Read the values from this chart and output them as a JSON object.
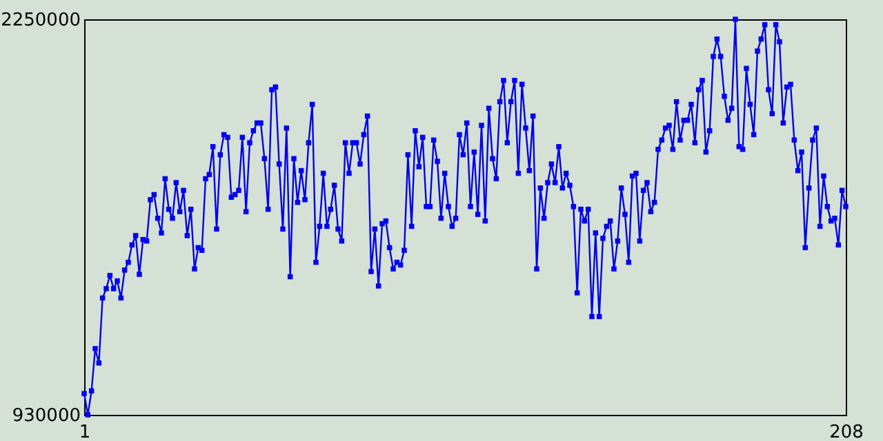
{
  "chart_data": {
    "type": "line",
    "x": [
      1,
      2,
      3,
      4,
      5,
      6,
      7,
      8,
      9,
      10,
      11,
      12,
      13,
      14,
      15,
      16,
      17,
      18,
      19,
      20,
      21,
      22,
      23,
      24,
      25,
      26,
      27,
      28,
      29,
      30,
      31,
      32,
      33,
      34,
      35,
      36,
      37,
      38,
      39,
      40,
      41,
      42,
      43,
      44,
      45,
      46,
      47,
      48,
      49,
      50,
      51,
      52,
      53,
      54,
      55,
      56,
      57,
      58,
      59,
      60,
      61,
      62,
      63,
      64,
      65,
      66,
      67,
      68,
      69,
      70,
      71,
      72,
      73,
      74,
      75,
      76,
      77,
      78,
      79,
      80,
      81,
      82,
      83,
      84,
      85,
      86,
      87,
      88,
      89,
      90,
      91,
      92,
      93,
      94,
      95,
      96,
      97,
      98,
      99,
      100,
      101,
      102,
      103,
      104,
      105,
      106,
      107,
      108,
      109,
      110,
      111,
      112,
      113,
      114,
      115,
      116,
      117,
      118,
      119,
      120,
      121,
      122,
      123,
      124,
      125,
      126,
      127,
      128,
      129,
      130,
      131,
      132,
      133,
      134,
      135,
      136,
      137,
      138,
      139,
      140,
      141,
      142,
      143,
      144,
      145,
      146,
      147,
      148,
      149,
      150,
      151,
      152,
      153,
      154,
      155,
      156,
      157,
      158,
      159,
      160,
      161,
      162,
      163,
      164,
      165,
      166,
      167,
      168,
      169,
      170,
      171,
      172,
      173,
      174,
      175,
      176,
      177,
      178,
      179,
      180,
      181,
      182,
      183,
      184,
      185,
      186,
      187,
      188,
      189,
      190,
      191,
      192,
      193,
      194,
      195,
      196,
      197,
      198,
      199,
      200,
      201,
      202,
      203,
      204,
      205,
      206,
      207,
      208
    ],
    "series": [
      {
        "color": "#0000ff",
        "values": [
          1001000,
          930000,
          1010000,
          1151000,
          1103000,
          1320000,
          1351000,
          1395000,
          1351000,
          1377000,
          1320000,
          1413000,
          1439000,
          1497000,
          1528000,
          1399000,
          1515000,
          1510000,
          1648000,
          1665000,
          1586000,
          1537000,
          1718000,
          1616000,
          1586000,
          1705000,
          1608000,
          1679000,
          1528000,
          1616000,
          1417000,
          1488000,
          1479000,
          1718000,
          1732000,
          1825000,
          1550000,
          1798000,
          1865000,
          1856000,
          1656000,
          1665000,
          1679000,
          1856000,
          1608000,
          1838000,
          1878000,
          1904000,
          1904000,
          1785000,
          1616000,
          2015000,
          2024000,
          1767000,
          1550000,
          1887000,
          1391000,
          1785000,
          1639000,
          1745000,
          1648000,
          1838000,
          1966000,
          1439000,
          1559000,
          1736000,
          1559000,
          1616000,
          1696000,
          1550000,
          1510000,
          1838000,
          1736000,
          1838000,
          1838000,
          1767000,
          1865000,
          1927000,
          1408000,
          1550000,
          1360000,
          1568000,
          1577000,
          1488000,
          1417000,
          1439000,
          1430000,
          1479000,
          1798000,
          1559000,
          1878000,
          1758000,
          1856000,
          1625000,
          1625000,
          1847000,
          1776000,
          1586000,
          1736000,
          1625000,
          1559000,
          1586000,
          1865000,
          1798000,
          1904000,
          1625000,
          1807000,
          1599000,
          1896000,
          1577000,
          1953000,
          1785000,
          1718000,
          1975000,
          2046000,
          1838000,
          1975000,
          2046000,
          1736000,
          2033000,
          1887000,
          1745000,
          1927000,
          1417000,
          1687000,
          1586000,
          1705000,
          1767000,
          1705000,
          1825000,
          1687000,
          1736000,
          1696000,
          1625000,
          1337000,
          1616000,
          1577000,
          1616000,
          1258000,
          1537000,
          1258000,
          1519000,
          1559000,
          1577000,
          1417000,
          1510000,
          1687000,
          1599000,
          1439000,
          1727000,
          1736000,
          1510000,
          1679000,
          1705000,
          1608000,
          1639000,
          1816000,
          1847000,
          1887000,
          1896000,
          1816000,
          1975000,
          1847000,
          1913000,
          1913000,
          1966000,
          1838000,
          2015000,
          2046000,
          1807000,
          1878000,
          2126000,
          2184000,
          2126000,
          1993000,
          1913000,
          1953000,
          2250000,
          1825000,
          1816000,
          2086000,
          1966000,
          1865000,
          2144000,
          2184000,
          2232000,
          2015000,
          1935000,
          2232000,
          2175000,
          1904000,
          2024000,
          2033000,
          1847000,
          1745000,
          1807000,
          1488000,
          1687000,
          1847000,
          1887000,
          1559000,
          1727000,
          1625000,
          1577000,
          1586000,
          1497000,
          1679000,
          1625000
        ]
      }
    ],
    "xlim": [
      1,
      208
    ],
    "xticks": [
      1,
      208
    ],
    "ylim": [
      930000,
      2250000
    ],
    "yticks": [
      930000,
      2250000
    ],
    "marker": "square",
    "grid": false,
    "legend": false
  }
}
